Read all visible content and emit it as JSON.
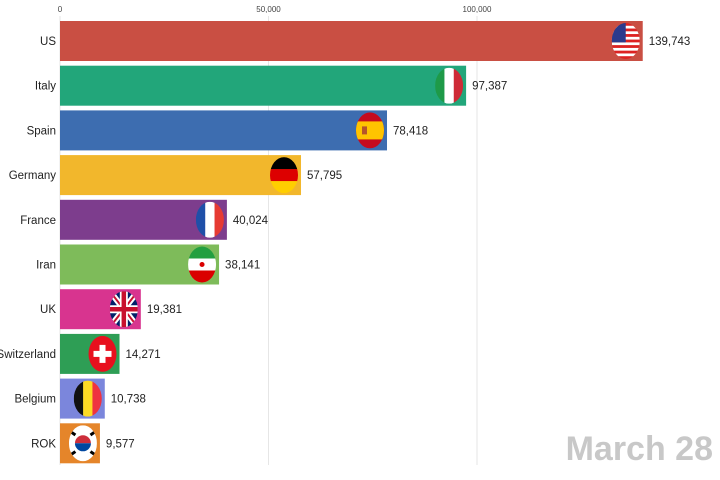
{
  "chart_data": {
    "type": "bar",
    "orientation": "horizontal",
    "title": "",
    "xlabel": "",
    "ylabel": "",
    "xlim": [
      0,
      158000
    ],
    "xticks": [
      0,
      50000,
      100000
    ],
    "xtick_labels": [
      "0",
      "50,000",
      "100,000"
    ],
    "grid": true,
    "date_label": "March 28",
    "categories": [
      "US",
      "Italy",
      "Spain",
      "Germany",
      "France",
      "Iran",
      "UK",
      "Switzerland",
      "Belgium",
      "ROK"
    ],
    "values": [
      139743,
      97387,
      78418,
      57795,
      40024,
      38141,
      19381,
      14271,
      10738,
      9577
    ],
    "value_labels": [
      "139,743",
      "97,387",
      "78,418",
      "57,795",
      "40,024",
      "38,141",
      "19,381",
      "14,271",
      "10,738",
      "9,577"
    ],
    "colors": [
      "#c94f43",
      "#22a67a",
      "#3d6db0",
      "#f2b72c",
      "#7d3d8d",
      "#7ebb5a",
      "#d8348f",
      "#2e9e55",
      "#7b86dc",
      "#e5852a"
    ],
    "icons": [
      "flag-us-icon",
      "flag-italy-icon",
      "flag-spain-icon",
      "flag-germany-icon",
      "flag-france-icon",
      "flag-iran-icon",
      "flag-uk-icon",
      "flag-switzerland-icon",
      "flag-belgium-icon",
      "flag-rok-icon"
    ]
  }
}
